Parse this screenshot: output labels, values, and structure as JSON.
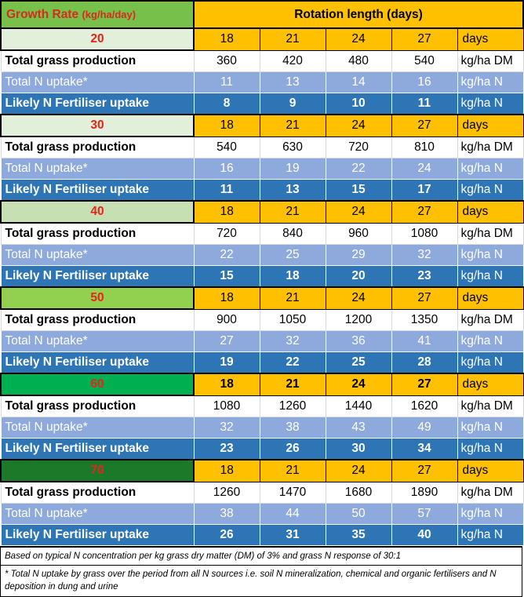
{
  "header": {
    "growth_rate_label": "Growth Rate",
    "growth_rate_unit": "(kg/ha/day)",
    "rotation_label": "Rotation length (days)"
  },
  "blocks": [
    {
      "rate": "20",
      "rate_color": "#e2efda",
      "rate_text_color": "#e8231a",
      "bold_numbers": false,
      "rotation": [
        "18",
        "21",
        "24",
        "27"
      ],
      "rotation_unit": "days",
      "grass": {
        "label": "Total grass production",
        "values": [
          "360",
          "420",
          "480",
          "540"
        ],
        "unit": "kg/ha DM"
      },
      "n_uptake": {
        "label": "Total N uptake*",
        "values": [
          "11",
          "13",
          "14",
          "16"
        ],
        "unit": "kg/ha N"
      },
      "fertiliser": {
        "label": "Likely N Fertiliser uptake",
        "values": [
          "8",
          "9",
          "10",
          "11"
        ],
        "unit": "kg/ha N"
      }
    },
    {
      "rate": "30",
      "rate_color": "#e2efda",
      "rate_text_color": "#e8231a",
      "bold_numbers": false,
      "rotation": [
        "18",
        "21",
        "24",
        "27"
      ],
      "rotation_unit": "days",
      "grass": {
        "label": "Total grass production",
        "values": [
          "540",
          "630",
          "720",
          "810"
        ],
        "unit": "kg/ha DM"
      },
      "n_uptake": {
        "label": "Total N uptake*",
        "values": [
          "16",
          "19",
          "22",
          "24"
        ],
        "unit": "kg/ha N"
      },
      "fertiliser": {
        "label": "Likely N Fertiliser uptake",
        "values": [
          "11",
          "13",
          "15",
          "17"
        ],
        "unit": "kg/ha N"
      }
    },
    {
      "rate": "40",
      "rate_color": "#c6e0b4",
      "rate_text_color": "#e8231a",
      "bold_numbers": false,
      "rotation": [
        "18",
        "21",
        "24",
        "27"
      ],
      "rotation_unit": "days",
      "grass": {
        "label": "Total grass production",
        "values": [
          "720",
          "840",
          "960",
          "1080"
        ],
        "unit": "kg/ha DM"
      },
      "n_uptake": {
        "label": "Total N uptake*",
        "values": [
          "22",
          "25",
          "29",
          "32"
        ],
        "unit": "kg/ha N"
      },
      "fertiliser": {
        "label": "Likely N Fertiliser uptake",
        "values": [
          "15",
          "18",
          "20",
          "23"
        ],
        "unit": "kg/ha N"
      }
    },
    {
      "rate": "50",
      "rate_color": "#92d050",
      "rate_text_color": "#e8231a",
      "bold_numbers": false,
      "rotation": [
        "18",
        "21",
        "24",
        "27"
      ],
      "rotation_unit": "days",
      "grass": {
        "label": "Total grass production",
        "values": [
          "900",
          "1050",
          "1200",
          "1350"
        ],
        "unit": "kg/ha DM"
      },
      "n_uptake": {
        "label": "Total N uptake*",
        "values": [
          "27",
          "32",
          "36",
          "41"
        ],
        "unit": "kg/ha N"
      },
      "fertiliser": {
        "label": "Likely N Fertiliser uptake",
        "values": [
          "19",
          "22",
          "25",
          "28"
        ],
        "unit": "kg/ha N"
      }
    },
    {
      "rate": "60",
      "rate_color": "#00b050",
      "rate_text_color": "#e8231a",
      "bold_numbers": true,
      "rotation": [
        "18",
        "21",
        "24",
        "27"
      ],
      "rotation_unit": "days",
      "grass": {
        "label": "Total grass production",
        "values": [
          "1080",
          "1260",
          "1440",
          "1620"
        ],
        "unit": "kg/ha DM"
      },
      "n_uptake": {
        "label": "Total N uptake*",
        "values": [
          "32",
          "38",
          "43",
          "49"
        ],
        "unit": "kg/ha N"
      },
      "fertiliser": {
        "label": "Likely N Fertiliser uptake",
        "values": [
          "23",
          "26",
          "30",
          "34"
        ],
        "unit": "kg/ha N"
      }
    },
    {
      "rate": "70",
      "rate_color": "#1a7a2a",
      "rate_text_color": "#e8231a",
      "bold_numbers": false,
      "rotation": [
        "18",
        "21",
        "24",
        "27"
      ],
      "rotation_unit": "days",
      "grass": {
        "label": "Total grass production",
        "values": [
          "1260",
          "1470",
          "1680",
          "1890"
        ],
        "unit": "kg/ha DM"
      },
      "n_uptake": {
        "label": "Total N uptake*",
        "values": [
          "38",
          "44",
          "50",
          "57"
        ],
        "unit": "kg/ha N"
      },
      "fertiliser": {
        "label": "Likely N Fertiliser uptake",
        "values": [
          "26",
          "31",
          "35",
          "40"
        ],
        "unit": "kg/ha N"
      }
    }
  ],
  "notes": {
    "note1": "Based on typical N concentration per kg grass dry matter (DM) of 3% and grass N response of 30:1",
    "note2": "* Total N uptake by grass over the period from all N sources i.e. soil N mineralization, chemical and organic fertilisers and N deposition in dung and urine"
  }
}
